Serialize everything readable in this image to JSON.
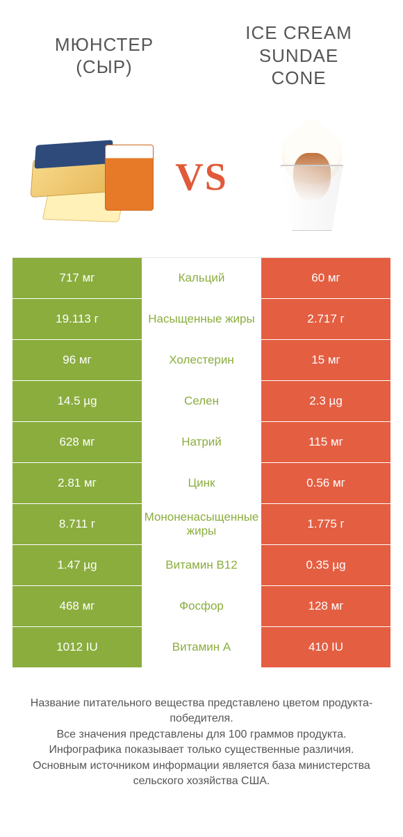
{
  "colors": {
    "left": "#8aad3e",
    "right": "#e45e42",
    "text": "#555555",
    "label_left": "#8aad3e",
    "label_right": "#e45e42",
    "white": "#ffffff"
  },
  "product_left": {
    "title_line1": "МЮНСТЕР",
    "title_line2": "(СЫР)"
  },
  "product_right": {
    "title_line1": "ICE CREAM",
    "title_line2": "SUNDAE",
    "title_line3": "CONE"
  },
  "vs_label": "VS",
  "comparison": {
    "type": "table",
    "rows": [
      {
        "left": "717 мг",
        "label": "Кальций",
        "right": "60 мг",
        "winner": "left"
      },
      {
        "left": "19.113 г",
        "label": "Насыщенные жиры",
        "right": "2.717 г",
        "winner": "left"
      },
      {
        "left": "96 мг",
        "label": "Холестерин",
        "right": "15 мг",
        "winner": "left"
      },
      {
        "left": "14.5 µg",
        "label": "Селен",
        "right": "2.3 µg",
        "winner": "left"
      },
      {
        "left": "628 мг",
        "label": "Натрий",
        "right": "115 мг",
        "winner": "left"
      },
      {
        "left": "2.81 мг",
        "label": "Цинк",
        "right": "0.56 мг",
        "winner": "left"
      },
      {
        "left": "8.711 г",
        "label": "Мононенасыщенные жиры",
        "right": "1.775 г",
        "winner": "left"
      },
      {
        "left": "1.47 µg",
        "label": "Витамин B12",
        "right": "0.35 µg",
        "winner": "left"
      },
      {
        "left": "468 мг",
        "label": "Фосфор",
        "right": "128 мг",
        "winner": "left"
      },
      {
        "left": "1012 IU",
        "label": "Витамин A",
        "right": "410 IU",
        "winner": "left"
      }
    ]
  },
  "footer": {
    "line1": "Название питательного вещества представлено цветом продукта-победителя.",
    "line2": "Все значения представлены для 100 граммов продукта.",
    "line3": "Инфографика показывает только существенные различия.",
    "line4": "Основным источником информации является база министерства сельского хозяйства США."
  }
}
